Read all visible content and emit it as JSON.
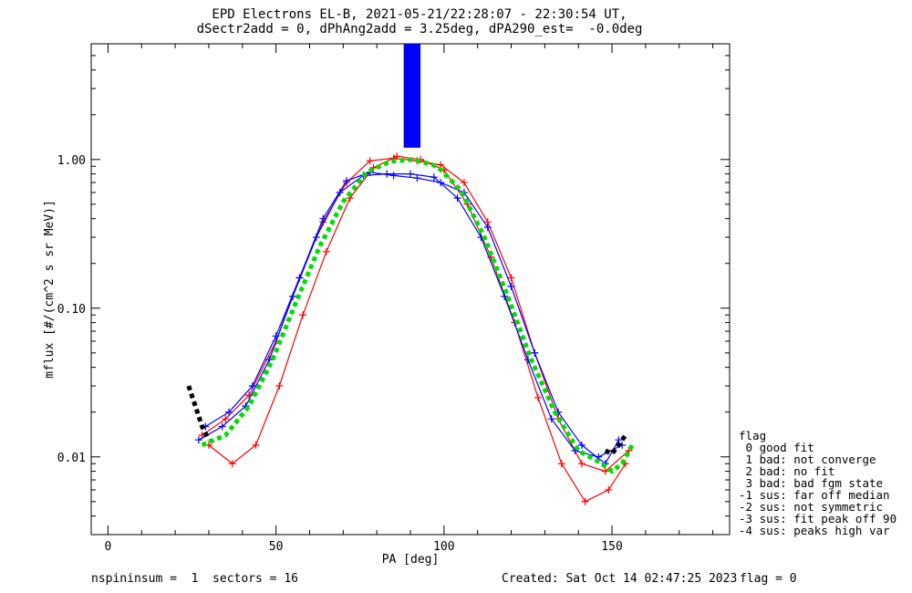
{
  "title_lines": [
    "EPD Electrons EL-B, 2021-05-21/22:28:07 - 22:30:54 UT,",
    "dSectr2add = 0, dPhAng2add = 3.25deg, dPA290_est=  -0.0deg"
  ],
  "footer": {
    "left": "nspininsum =  1  sectors = 16",
    "created": "Created: Sat Oct 14 02:47:25 2023",
    "flag": "flag = 0"
  },
  "legend": {
    "title": "flag",
    "items": [
      " 0 good fit",
      " 1 bad: not converge",
      " 2 bad: no fit",
      " 3 bad: bad fgm state",
      "-1 sus: far off median",
      "-2 sus: not symmetric",
      "-3 sus: fit peak off 90",
      "-4 sus: peaks high var"
    ]
  },
  "chart_data": {
    "type": "line",
    "xlabel": "PA [deg]",
    "ylabel": "mflux [#/(cm^2 s sr MeV)]",
    "xlim": [
      -5,
      185
    ],
    "ylim": [
      0.003,
      6
    ],
    "yscale": "log",
    "x_ticks": [
      0,
      50,
      100,
      150
    ],
    "x_tick_labels": [
      "0",
      "50",
      "100",
      "150"
    ],
    "y_ticks": [
      0.01,
      0.1,
      1.0
    ],
    "y_tick_labels": [
      "0.01",
      "0.10",
      "1.00"
    ],
    "colors": {
      "red": "#ff0000",
      "blue": "#0000ff",
      "green": "#00dd00",
      "black": "#000000"
    },
    "series": [
      {
        "color": "red",
        "x": [
          28,
          35,
          42,
          50,
          57,
          64,
          71,
          78,
          85,
          92,
          99,
          106,
          113,
          120,
          127,
          134,
          141,
          148,
          155
        ],
        "y": [
          0.014,
          0.018,
          0.026,
          0.06,
          0.16,
          0.38,
          0.7,
          0.98,
          1.02,
          0.98,
          0.92,
          0.7,
          0.38,
          0.16,
          0.05,
          0.018,
          0.009,
          0.008,
          0.011
        ]
      },
      {
        "color": "red",
        "x": [
          30,
          37,
          44,
          51,
          58,
          65,
          72,
          79,
          86,
          93,
          100,
          107,
          114,
          121,
          128,
          135,
          142,
          149,
          154
        ],
        "y": [
          0.012,
          0.009,
          0.012,
          0.03,
          0.09,
          0.24,
          0.55,
          0.88,
          1.05,
          1.0,
          0.85,
          0.5,
          0.22,
          0.08,
          0.025,
          0.009,
          0.005,
          0.006,
          0.009
        ]
      },
      {
        "color": "blue",
        "x": [
          27,
          34,
          41,
          48,
          55,
          62,
          69,
          76,
          83,
          90,
          97,
          104,
          111,
          118,
          125,
          132,
          139,
          146,
          153
        ],
        "y": [
          0.013,
          0.016,
          0.022,
          0.045,
          0.12,
          0.3,
          0.6,
          0.78,
          0.8,
          0.8,
          0.76,
          0.55,
          0.3,
          0.12,
          0.045,
          0.018,
          0.011,
          0.01,
          0.012
        ]
      },
      {
        "color": "blue",
        "x": [
          29,
          36,
          43,
          50,
          57,
          64,
          71,
          78,
          85,
          92,
          99,
          106,
          113,
          120,
          127,
          134,
          141,
          148,
          152
        ],
        "y": [
          0.016,
          0.02,
          0.03,
          0.065,
          0.16,
          0.4,
          0.72,
          0.82,
          0.78,
          0.75,
          0.7,
          0.6,
          0.35,
          0.14,
          0.05,
          0.02,
          0.012,
          0.009,
          0.013
        ]
      },
      {
        "color": "green",
        "dashed": true,
        "x": [
          28,
          35,
          42,
          49,
          56,
          63,
          70,
          77,
          84,
          91,
          98,
          105,
          112,
          119,
          126,
          133,
          140,
          147,
          150,
          153,
          156
        ],
        "y": [
          0.012,
          0.014,
          0.022,
          0.045,
          0.11,
          0.26,
          0.52,
          0.82,
          0.97,
          1.0,
          0.9,
          0.62,
          0.3,
          0.12,
          0.045,
          0.02,
          0.011,
          0.009,
          0.008,
          0.009,
          0.012
        ]
      },
      {
        "color": "black",
        "dashed": true,
        "x": [
          24,
          26,
          28,
          30
        ],
        "y": [
          0.03,
          0.022,
          0.016,
          0.013
        ]
      },
      {
        "color": "black",
        "dashed": true,
        "x": [
          148,
          150,
          152,
          154
        ],
        "y": [
          0.011,
          0.0105,
          0.012,
          0.014
        ]
      }
    ],
    "vertical_bar": {
      "x_range": [
        88,
        93
      ],
      "y_range": [
        1.2,
        6
      ],
      "color": "blue"
    }
  }
}
